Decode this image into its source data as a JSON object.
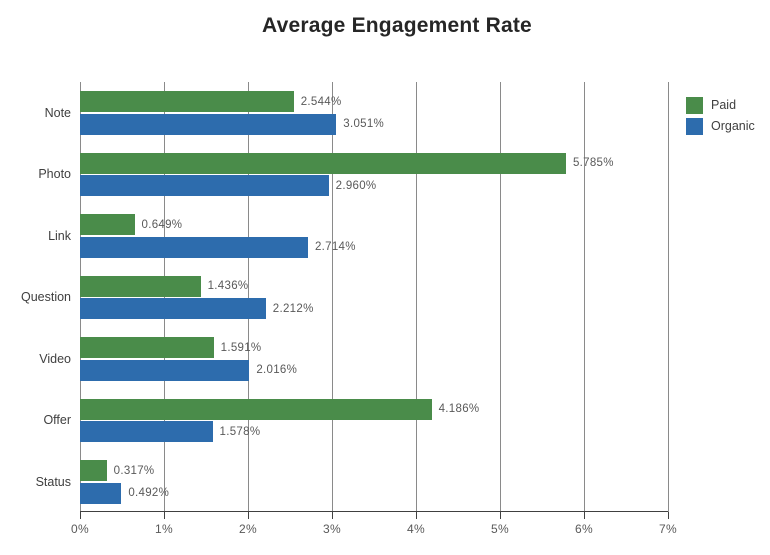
{
  "chart_data": {
    "type": "bar",
    "orientation": "horizontal",
    "title": "Average Engagement Rate",
    "categories": [
      "Note",
      "Photo",
      "Link",
      "Question",
      "Video",
      "Offer",
      "Status"
    ],
    "series": [
      {
        "name": "Paid",
        "color": "#4a8c4a",
        "values": [
          2.544,
          5.785,
          0.649,
          1.436,
          1.591,
          4.186,
          0.317
        ],
        "labels": [
          "2.544%",
          "5.785%",
          "0.649%",
          "1.436%",
          "1.591%",
          "4.186%",
          "0.317%"
        ]
      },
      {
        "name": "Organic",
        "color": "#2d6cad",
        "values": [
          3.051,
          2.96,
          2.714,
          2.212,
          2.016,
          1.578,
          0.492
        ],
        "labels": [
          "3.051%",
          "2.960%",
          "2.714%",
          "2.212%",
          "2.016%",
          "1.578%",
          "0.492%"
        ]
      }
    ],
    "x_axis": {
      "min": 0,
      "max": 7,
      "tick_labels": [
        "0%",
        "1%",
        "2%",
        "3%",
        "4%",
        "5%",
        "6%",
        "7%"
      ]
    },
    "legend_position": "top-right",
    "grid": "vertical",
    "colors": {
      "grid": "#8a8a8a",
      "axis": "#404040",
      "value_label": "#595959",
      "category_label": "#3f3f3f",
      "title": "#262626"
    }
  }
}
